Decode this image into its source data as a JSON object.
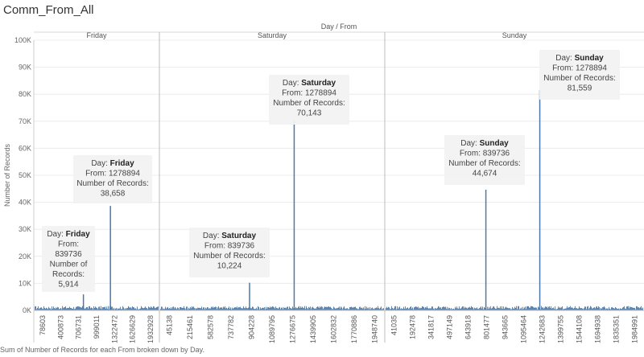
{
  "title": "Comm_From_All",
  "footer": "Sum of Number of Records for each From broken down by Day.",
  "chart_data": {
    "type": "bar",
    "column_header": "Day / From",
    "ylabel": "Number of Records",
    "ylim": [
      0,
      100000
    ],
    "yticks": [
      "0K",
      "10K",
      "20K",
      "30K",
      "40K",
      "50K",
      "60K",
      "70K",
      "80K",
      "90K",
      "100K"
    ],
    "panels": [
      {
        "name": "Friday",
        "xticks": [
          "78603",
          "400873",
          "706731",
          "999011",
          "1322472",
          "1626629",
          "1932928"
        ],
        "spikes": [
          {
            "from": "839736",
            "value": 5914
          },
          {
            "from": "1278894",
            "value": 38658
          }
        ]
      },
      {
        "name": "Saturday",
        "xticks": [
          "45138",
          "215461",
          "582578",
          "737782",
          "904228",
          "1089795",
          "1276675",
          "1439905",
          "1602832",
          "1770886",
          "1948740"
        ],
        "spikes": [
          {
            "from": "839736",
            "value": 10224
          },
          {
            "from": "1278894",
            "value": 70143
          }
        ]
      },
      {
        "name": "Sunday",
        "xticks": [
          "41035",
          "192478",
          "341817",
          "497149",
          "643918",
          "801477",
          "943665",
          "1095464",
          "1242683",
          "1399755",
          "1544108",
          "1694938",
          "1835351",
          "1984991"
        ],
        "spikes": [
          {
            "from": "839736",
            "value": 44674
          },
          {
            "from": "1278894",
            "value": 81559
          }
        ]
      }
    ],
    "tooltip_labels": {
      "day": "Day:",
      "from": "From:",
      "records": "Number of Records:"
    },
    "annotations": [
      {
        "panel": 0,
        "day": "Friday",
        "from": "839736",
        "records": "5,914"
      },
      {
        "panel": 0,
        "day": "Friday",
        "from": "1278894",
        "records": "38,658"
      },
      {
        "panel": 1,
        "day": "Saturday",
        "from": "839736",
        "records": "10,224"
      },
      {
        "panel": 1,
        "day": "Saturday",
        "from": "1278894",
        "records": "70,143"
      },
      {
        "panel": 2,
        "day": "Sunday",
        "from": "839736",
        "records": "44,674"
      },
      {
        "panel": 2,
        "day": "Sunday",
        "from": "1278894",
        "records": "81,559"
      }
    ],
    "bar_color": "#4e79a7",
    "grid": true,
    "legend": "none"
  }
}
